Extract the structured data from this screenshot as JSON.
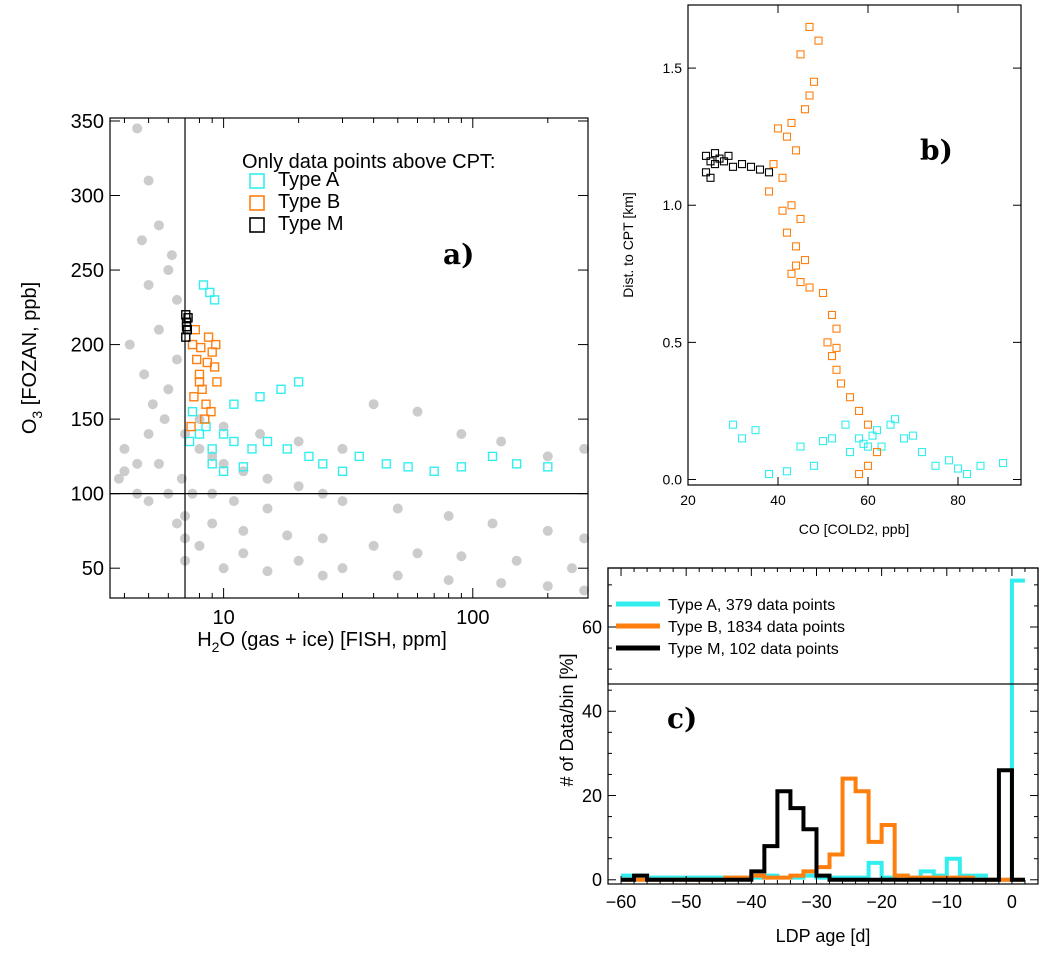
{
  "colors": {
    "background": "#cccccc",
    "type_a": "#33eeee",
    "type_b": "#ff7f0e",
    "type_m": "#000000"
  },
  "chart_data": [
    {
      "type": "scatter",
      "panel_label": "a)",
      "xlabel": {
        "pre": "H",
        "sub": "2",
        "post": "O (gas + ice) [FISH, ppm]"
      },
      "ylabel": {
        "pre": "O",
        "sub": "3",
        "post": " [FOZAN, ppb]"
      },
      "xscale": "log",
      "xlim": [
        3.5,
        290
      ],
      "ylim": [
        30,
        352
      ],
      "xticks": [
        10,
        100
      ],
      "yticks": [
        50,
        100,
        150,
        200,
        250,
        300,
        350
      ],
      "reference_lines": {
        "x": 7,
        "y": 100
      },
      "legend": {
        "title": "Only data points above CPT:",
        "entries": [
          "Type A",
          "Type B",
          "Type M"
        ],
        "position": "top-right"
      },
      "series": [
        {
          "name": "background (all data)",
          "marker": "filled-circle",
          "points": [
            [
              4.5,
              345
            ],
            [
              5,
              310
            ],
            [
              5.5,
              280
            ],
            [
              6,
              250
            ],
            [
              6.5,
              230
            ],
            [
              4.2,
              200
            ],
            [
              4.8,
              180
            ],
            [
              5.2,
              160
            ],
            [
              5.8,
              150
            ],
            [
              4,
              130
            ],
            [
              4.5,
              120
            ],
            [
              3.8,
              110
            ],
            [
              5,
              140
            ],
            [
              6,
              170
            ],
            [
              6.5,
              190
            ],
            [
              5.5,
              210
            ],
            [
              6.2,
              260
            ],
            [
              5,
              240
            ],
            [
              4.7,
              270
            ],
            [
              7,
              140
            ],
            [
              8,
              130
            ],
            [
              9,
              125
            ],
            [
              10,
              120
            ],
            [
              12,
              115
            ],
            [
              15,
              110
            ],
            [
              20,
              105
            ],
            [
              25,
              100
            ],
            [
              30,
              95
            ],
            [
              50,
              90
            ],
            [
              80,
              85
            ],
            [
              120,
              80
            ],
            [
              200,
              75
            ],
            [
              280,
              70
            ],
            [
              8,
              150
            ],
            [
              10,
              145
            ],
            [
              14,
              140
            ],
            [
              20,
              135
            ],
            [
              30,
              130
            ],
            [
              40,
              160
            ],
            [
              60,
              155
            ],
            [
              90,
              140
            ],
            [
              130,
              135
            ],
            [
              200,
              125
            ],
            [
              280,
              130
            ],
            [
              7,
              85
            ],
            [
              9,
              80
            ],
            [
              12,
              75
            ],
            [
              18,
              72
            ],
            [
              25,
              70
            ],
            [
              40,
              65
            ],
            [
              60,
              60
            ],
            [
              90,
              58
            ],
            [
              150,
              55
            ],
            [
              250,
              50
            ],
            [
              8,
              65
            ],
            [
              12,
              60
            ],
            [
              20,
              55
            ],
            [
              30,
              50
            ],
            [
              50,
              45
            ],
            [
              80,
              42
            ],
            [
              130,
              40
            ],
            [
              200,
              38
            ],
            [
              280,
              35
            ],
            [
              7,
              55
            ],
            [
              10,
              50
            ],
            [
              15,
              48
            ],
            [
              25,
              45
            ],
            [
              7.5,
              100
            ],
            [
              6,
              100
            ],
            [
              5,
              95
            ],
            [
              4.5,
              100
            ],
            [
              5.5,
              120
            ],
            [
              6.8,
              110
            ],
            [
              9,
              100
            ],
            [
              11,
              95
            ],
            [
              15,
              90
            ],
            [
              7,
              70
            ],
            [
              6.5,
              80
            ],
            [
              4,
              115
            ]
          ]
        },
        {
          "name": "Type A",
          "marker": "open-square",
          "points": [
            [
              7.3,
              135
            ],
            [
              8,
              140
            ],
            [
              9,
              130
            ],
            [
              10,
              140
            ],
            [
              11,
              135
            ],
            [
              13,
              130
            ],
            [
              15,
              135
            ],
            [
              18,
              130
            ],
            [
              22,
              125
            ],
            [
              25,
              120
            ],
            [
              30,
              115
            ],
            [
              35,
              125
            ],
            [
              45,
              120
            ],
            [
              55,
              118
            ],
            [
              70,
              115
            ],
            [
              90,
              118
            ],
            [
              120,
              125
            ],
            [
              150,
              120
            ],
            [
              200,
              118
            ],
            [
              8.3,
              240
            ],
            [
              8.8,
              235
            ],
            [
              9.2,
              230
            ],
            [
              14,
              165
            ],
            [
              17,
              170
            ],
            [
              20,
              175
            ],
            [
              9,
              120
            ],
            [
              10,
              115
            ],
            [
              12,
              118
            ],
            [
              8.5,
              145
            ],
            [
              7.5,
              155
            ],
            [
              11,
              160
            ]
          ]
        },
        {
          "name": "Type B",
          "marker": "open-square",
          "points": [
            [
              7.5,
              200
            ],
            [
              7.8,
              190
            ],
            [
              8,
              180
            ],
            [
              8.2,
              170
            ],
            [
              8.5,
              160
            ],
            [
              8.7,
              205
            ],
            [
              9,
              195
            ],
            [
              9.2,
              185
            ],
            [
              8,
              175
            ],
            [
              7.6,
              165
            ],
            [
              8.4,
              150
            ],
            [
              8.9,
              155
            ],
            [
              9.4,
              175
            ],
            [
              7.7,
              210
            ],
            [
              8.1,
              198
            ],
            [
              8.6,
              188
            ],
            [
              7.4,
              145
            ],
            [
              9.3,
              200
            ]
          ]
        },
        {
          "name": "Type M",
          "marker": "open-square",
          "points": [
            [
              7.05,
              220
            ],
            [
              7.1,
              215
            ],
            [
              7.15,
              210
            ],
            [
              7.05,
              205
            ],
            [
              7.2,
              218
            ],
            [
              7.1,
              212
            ]
          ]
        }
      ]
    },
    {
      "type": "scatter",
      "panel_label": "b)",
      "xlabel": "CO [COLD2, ppb]",
      "ylabel": "Dist. to CPT [km]",
      "xlim": [
        20,
        94
      ],
      "ylim": [
        -0.02,
        1.73
      ],
      "xticks": [
        20,
        40,
        60,
        80
      ],
      "yticks": [
        0.0,
        0.5,
        1.0,
        1.5
      ],
      "series": [
        {
          "name": "Type A",
          "marker": "open-square",
          "points": [
            [
              55,
              0.2
            ],
            [
              58,
              0.15
            ],
            [
              60,
              0.12
            ],
            [
              62,
              0.18
            ],
            [
              65,
              0.2
            ],
            [
              68,
              0.15
            ],
            [
              72,
              0.1
            ],
            [
              75,
              0.05
            ],
            [
              80,
              0.04
            ],
            [
              85,
              0.05
            ],
            [
              90,
              0.06
            ],
            [
              56,
              0.1
            ],
            [
              59,
              0.13
            ],
            [
              61,
              0.16
            ],
            [
              63,
              0.12
            ],
            [
              30,
              0.2
            ],
            [
              32,
              0.15
            ],
            [
              35,
              0.18
            ],
            [
              45,
              0.12
            ],
            [
              48,
              0.05
            ],
            [
              42,
              0.03
            ],
            [
              38,
              0.02
            ],
            [
              50,
              0.14
            ],
            [
              52,
              0.15
            ],
            [
              66,
              0.22
            ],
            [
              70,
              0.16
            ],
            [
              78,
              0.07
            ],
            [
              82,
              0.02
            ]
          ]
        },
        {
          "name": "Type B",
          "marker": "open-square",
          "points": [
            [
              40,
              1.28
            ],
            [
              42,
              1.25
            ],
            [
              44,
              1.2
            ],
            [
              41,
              1.1
            ],
            [
              43,
              1.0
            ],
            [
              45,
              0.95
            ],
            [
              42,
              0.9
            ],
            [
              44,
              0.85
            ],
            [
              46,
              0.8
            ],
            [
              43,
              0.75
            ],
            [
              45,
              0.72
            ],
            [
              47,
              0.7
            ],
            [
              52,
              0.6
            ],
            [
              53,
              0.55
            ],
            [
              51,
              0.5
            ],
            [
              52,
              0.45
            ],
            [
              53,
              0.4
            ],
            [
              54,
              0.35
            ],
            [
              56,
              0.3
            ],
            [
              58,
              0.25
            ],
            [
              60,
              0.2
            ],
            [
              62,
              0.1
            ],
            [
              60,
              0.05
            ],
            [
              58,
              0.02
            ],
            [
              46,
              1.35
            ],
            [
              47,
              1.4
            ],
            [
              48,
              1.45
            ],
            [
              45,
              1.55
            ],
            [
              47,
              1.65
            ],
            [
              49,
              1.6
            ],
            [
              43,
              1.3
            ],
            [
              39,
              1.15
            ],
            [
              38,
              1.05
            ],
            [
              41,
              0.98
            ],
            [
              44,
              0.78
            ],
            [
              50,
              0.68
            ],
            [
              53,
              0.48
            ]
          ]
        },
        {
          "name": "Type M",
          "marker": "open-square",
          "points": [
            [
              24,
              1.18
            ],
            [
              25,
              1.16
            ],
            [
              26,
              1.15
            ],
            [
              27,
              1.17
            ],
            [
              28,
              1.16
            ],
            [
              30,
              1.14
            ],
            [
              32,
              1.15
            ],
            [
              34,
              1.14
            ],
            [
              36,
              1.13
            ],
            [
              38,
              1.12
            ],
            [
              24,
              1.12
            ],
            [
              25,
              1.1
            ],
            [
              26,
              1.19
            ],
            [
              29,
              1.18
            ]
          ]
        }
      ]
    },
    {
      "type": "line",
      "panel_label": "c)",
      "xlabel": "LDP age [d]",
      "ylabel": "# of Data/bin [%]",
      "xlim": [
        -62,
        4
      ],
      "ylim": [
        -1,
        74
      ],
      "xticks": [
        -60,
        -50,
        -40,
        -30,
        -20,
        -10,
        0
      ],
      "yticks": [
        0,
        20,
        40,
        60
      ],
      "bin_width": 2,
      "bin_edges": [
        -60,
        -58,
        -56,
        -54,
        -52,
        -50,
        -48,
        -46,
        -44,
        -42,
        -40,
        -38,
        -36,
        -34,
        -32,
        -30,
        -28,
        -26,
        -24,
        -22,
        -20,
        -18,
        -16,
        -14,
        -12,
        -10,
        -8,
        -6,
        -4,
        -2,
        0,
        2
      ],
      "series": [
        {
          "name": "Type A, 379 data points",
          "values": [
            1,
            1,
            0.5,
            0.5,
            0.5,
            0.5,
            0.5,
            0.5,
            0.5,
            0.5,
            0.5,
            1,
            0.5,
            0.5,
            1,
            0.5,
            0.5,
            0.5,
            0.5,
            4,
            0.5,
            1,
            0.5,
            2,
            1,
            5,
            1,
            1,
            0,
            0,
            71
          ]
        },
        {
          "name": "Type B, 1834 data points",
          "values": [
            0,
            0,
            0,
            0,
            0,
            0,
            0,
            0,
            0.5,
            0.5,
            1,
            0.5,
            0.5,
            1,
            2,
            3,
            6,
            24,
            21,
            9,
            13,
            1,
            0.5,
            0.5,
            0.5,
            0.5,
            0.5,
            0,
            0,
            0,
            0
          ]
        },
        {
          "name": "Type M, 102 data points",
          "values": [
            0,
            1,
            0,
            0,
            0,
            0,
            0,
            0,
            0,
            0,
            2,
            8,
            21,
            17,
            12,
            1,
            0,
            0,
            0,
            0,
            0,
            0,
            0,
            0,
            0,
            0,
            0,
            0,
            0,
            26,
            0
          ]
        }
      ]
    }
  ]
}
